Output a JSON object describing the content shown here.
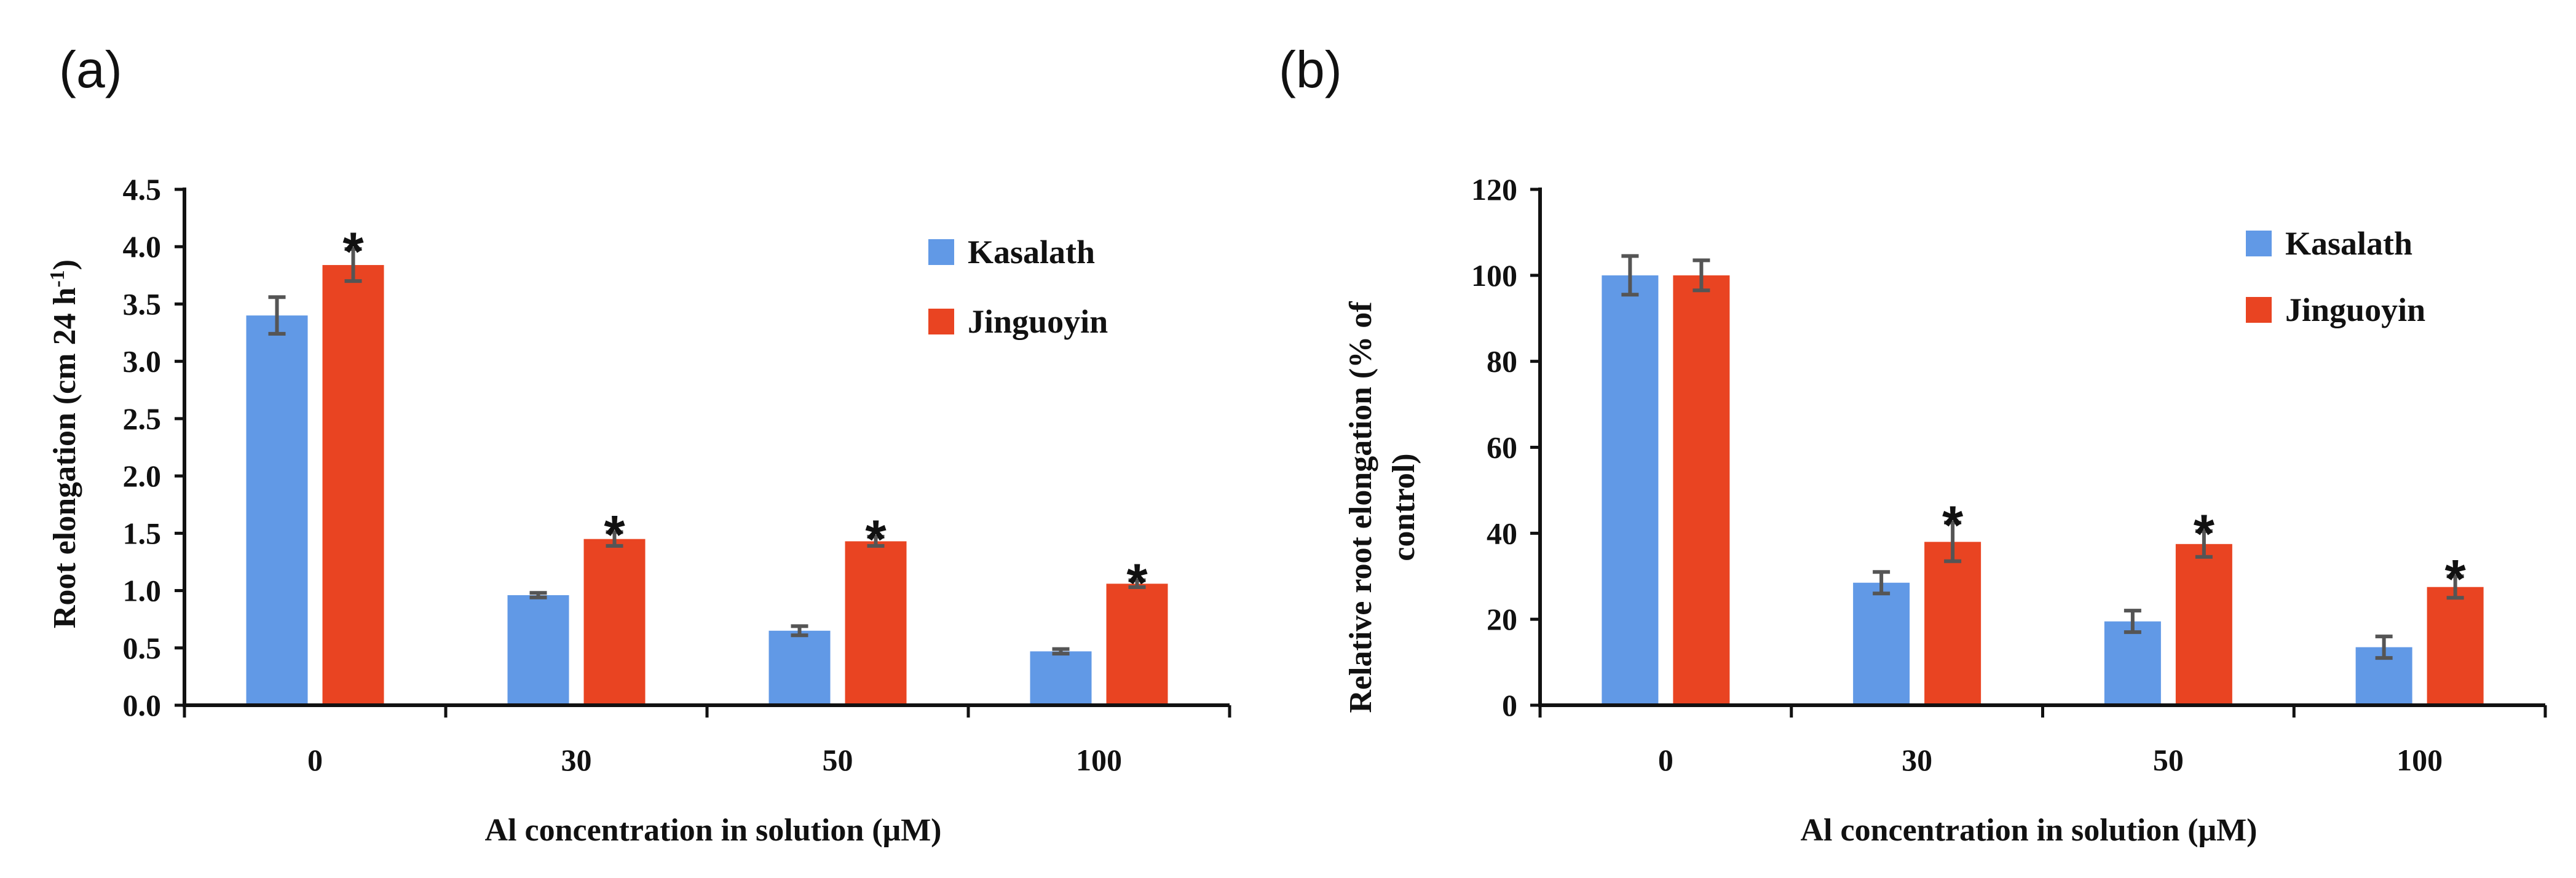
{
  "chart_data": [
    {
      "panel": "(a)",
      "type": "bar",
      "categories": [
        "0",
        "30",
        "50",
        "100"
      ],
      "xlabel": "Al concentration in solution (μM)",
      "ylabel": "Root elongation (cm 24 h",
      "ylabel_sup": "-1",
      "ylabel_end": ")",
      "ylim": [
        0,
        4.5
      ],
      "yticks": [
        "0.0",
        "0.5",
        "1.0",
        "1.5",
        "2.0",
        "2.5",
        "3.0",
        "3.5",
        "4.0",
        "4.5"
      ],
      "ytick_values": [
        0,
        0.5,
        1.0,
        1.5,
        2.0,
        2.5,
        3.0,
        3.5,
        4.0,
        4.5
      ],
      "legend_position": "top-right",
      "series": [
        {
          "name": "Kasalath",
          "color": "#6199e6",
          "values": [
            3.4,
            0.96,
            0.65,
            0.47
          ],
          "errors": [
            0.16,
            0.02,
            0.04,
            0.02
          ]
        },
        {
          "name": "Jinguoyin",
          "color": "#e94422",
          "values": [
            3.84,
            1.45,
            1.43,
            1.06
          ],
          "errors": [
            0.14,
            0.06,
            0.04,
            0.03
          ]
        }
      ],
      "significance_marker": "*",
      "significant": [
        [
          false,
          false,
          false,
          false
        ],
        [
          true,
          true,
          true,
          true
        ]
      ]
    },
    {
      "panel": "(b)",
      "type": "bar",
      "categories": [
        "0",
        "30",
        "50",
        "100"
      ],
      "xlabel": "Al concentration in solution (μM)",
      "ylabel_line1": "Relative root elongation (% of",
      "ylabel_line2": "control)",
      "ylim": [
        0,
        120
      ],
      "yticks": [
        "0",
        "20",
        "40",
        "60",
        "80",
        "100",
        "120"
      ],
      "ytick_values": [
        0,
        20,
        40,
        60,
        80,
        100,
        120
      ],
      "legend_position": "top-right",
      "series": [
        {
          "name": "Kasalath",
          "color": "#6199e6",
          "values": [
            100,
            28.5,
            19.5,
            13.5
          ],
          "errors": [
            4.5,
            2.5,
            2.5,
            2.5
          ]
        },
        {
          "name": "Jinguoyin",
          "color": "#e94422",
          "values": [
            100,
            38,
            37.5,
            27.5
          ],
          "errors": [
            3.5,
            4.5,
            3.0,
            2.5
          ]
        }
      ],
      "significance_marker": "*",
      "significant": [
        [
          false,
          false,
          false,
          false
        ],
        [
          false,
          true,
          true,
          true
        ]
      ]
    }
  ]
}
